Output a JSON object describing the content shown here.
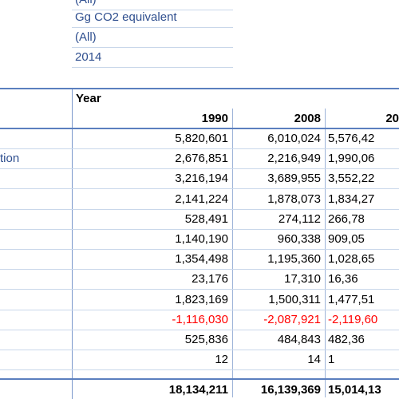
{
  "filters": {
    "cut_top": "(All)",
    "unit": "Gg CO2 equivalent",
    "all": "(All)",
    "year": "2014"
  },
  "header": {
    "year_label": "Year",
    "years": [
      "1990",
      "2008",
      "20"
    ]
  },
  "rows": [
    {
      "label": "",
      "v1990": "5,820,601",
      "v2008": "6,010,024",
      "vlast": "5,576,42"
    },
    {
      "label": "tion",
      "v1990": "2,676,851",
      "v2008": "2,216,949",
      "vlast": "1,990,06"
    },
    {
      "label": "",
      "v1990": "3,216,194",
      "v2008": "3,689,955",
      "vlast": "3,552,22"
    },
    {
      "label": "",
      "v1990": "2,141,224",
      "v2008": "1,878,073",
      "vlast": "1,834,27"
    },
    {
      "label": "",
      "v1990": "528,491",
      "v2008": "274,112",
      "vlast": "266,78"
    },
    {
      "label": "",
      "v1990": "1,140,190",
      "v2008": "960,338",
      "vlast": "909,05"
    },
    {
      "label": "",
      "v1990": "1,354,498",
      "v2008": "1,195,360",
      "vlast": "1,028,65"
    },
    {
      "label": "",
      "v1990": "23,176",
      "v2008": "17,310",
      "vlast": "16,36"
    },
    {
      "label": "",
      "v1990": "1,823,169",
      "v2008": "1,500,311",
      "vlast": "1,477,51"
    },
    {
      "label": "",
      "v1990": "-1,116,030",
      "v2008": "-2,087,921",
      "vlast": "-2,119,60",
      "negative": true
    },
    {
      "label": "",
      "v1990": "525,836",
      "v2008": "484,843",
      "vlast": "482,36"
    },
    {
      "label": "",
      "v1990": "12",
      "v2008": "14",
      "vlast": "1"
    }
  ],
  "totals": {
    "v1990": "18,134,211",
    "v2008": "16,139,369",
    "vlast": "15,014,13"
  },
  "colors": {
    "label_blue": "#2f4f8f",
    "negative_red": "#ff0000",
    "rule_blue": "#5b7fbf"
  }
}
